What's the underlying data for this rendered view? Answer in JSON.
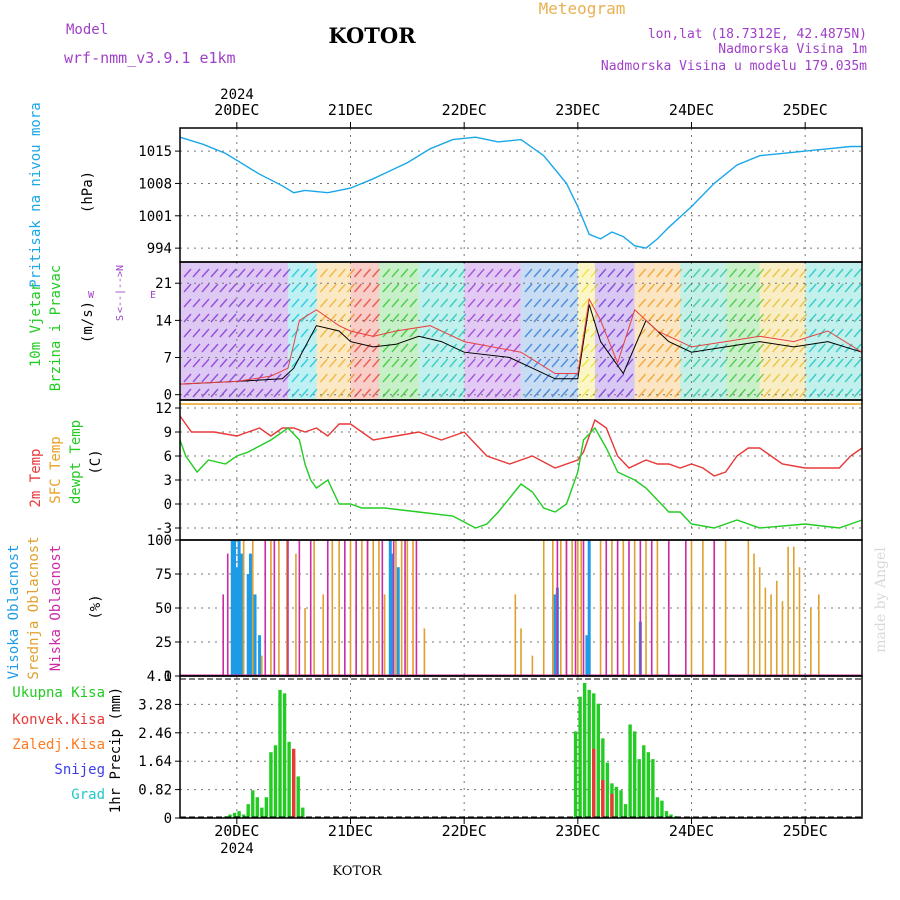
{
  "header": {
    "model_label": "Model",
    "model_name": "wrf-nmm_v3.9.1 e1km",
    "city": "KOTOR",
    "meteogram": "Meteogram",
    "lonlat": "lon,lat (18.7312E, 42.4875N)",
    "elevation": "Nadmorska Visina 1m",
    "model_elevation": "Nadmorska Visina u modelu 179.035m",
    "year_top": "2024",
    "year_bottom": "2024",
    "footer_city": "KOTOR",
    "watermark": "made by Angel"
  },
  "chart_data": [
    {
      "type": "line",
      "panel": "pressure",
      "ylabel_lines": [
        "Pritisak na nivou mora",
        "(hPa)"
      ],
      "yticks": [
        994,
        1001,
        1008,
        1015
      ],
      "ylim": [
        991,
        1020
      ],
      "x_unit": "days since 2024-12-20 00Z",
      "x_ticks": [
        "20DEC",
        "21DEC",
        "22DEC",
        "23DEC",
        "24DEC",
        "25DEC"
      ],
      "series": [
        {
          "color": "#1aa7e8",
          "x": [
            -0.5,
            -0.3,
            -0.1,
            0.2,
            0.4,
            0.5,
            0.6,
            0.8,
            1.0,
            1.2,
            1.5,
            1.7,
            1.9,
            2.1,
            2.3,
            2.5,
            2.7,
            2.9,
            3.0,
            3.1,
            3.2,
            3.3,
            3.4,
            3.5,
            3.6,
            3.7,
            3.8,
            4.0,
            4.2,
            4.4,
            4.6,
            4.8,
            5.0,
            5.2,
            5.4,
            5.5
          ],
          "y": [
            1018,
            1016.5,
            1014.5,
            1010,
            1007.5,
            1006,
            1006.5,
            1006,
            1007,
            1009,
            1012.5,
            1015.5,
            1017.5,
            1018,
            1017,
            1017.5,
            1014,
            1008,
            1003,
            997,
            996,
            997.5,
            996.5,
            994.5,
            994,
            996,
            998.5,
            1003,
            1008,
            1012,
            1014,
            1014.5,
            1015,
            1015.5,
            1016,
            1016
          ]
        }
      ]
    },
    {
      "type": "line",
      "panel": "wind",
      "ylabel_lines": [
        "10m Vjetar",
        "Brzina i Pravac",
        "(m/s)"
      ],
      "compass_lines": [
        "N",
        "<--|-->",
        "S"
      ],
      "compass_w": "W",
      "compass_e": "E",
      "yticks": [
        0,
        7,
        14,
        21
      ],
      "ylim": [
        -1,
        25
      ],
      "series": [
        {
          "color": "#000000",
          "x": [
            -0.5,
            0.0,
            0.4,
            0.5,
            0.7,
            0.9,
            1.0,
            1.2,
            1.4,
            1.6,
            1.8,
            2.0,
            2.4,
            2.8,
            3.0,
            3.1,
            3.2,
            3.4,
            3.6,
            3.8,
            4.0,
            4.3,
            4.6,
            4.9,
            5.2,
            5.5
          ],
          "y": [
            2,
            2.5,
            3,
            5,
            13,
            12,
            10,
            9,
            9.5,
            11,
            10,
            8,
            7,
            3,
            3,
            17,
            10,
            4,
            14,
            10,
            8,
            9,
            10,
            9,
            10,
            8
          ]
        },
        {
          "color": "#e84040",
          "x": [
            -0.5,
            0.0,
            0.3,
            0.45,
            0.55,
            0.7,
            0.9,
            1.0,
            1.2,
            1.4,
            1.7,
            2.0,
            2.5,
            2.8,
            3.0,
            3.1,
            3.2,
            3.35,
            3.5,
            3.7,
            4.0,
            4.3,
            4.6,
            4.9,
            5.2,
            5.5
          ],
          "y": [
            2,
            2.5,
            3.5,
            5,
            14,
            16,
            13,
            12,
            11,
            12,
            13,
            10,
            8,
            4,
            4,
            18,
            14,
            6,
            16,
            12,
            9,
            10,
            11,
            10,
            12,
            8
          ]
        }
      ]
    },
    {
      "type": "line",
      "panel": "temperature",
      "ylabel_lines": [
        "2m Temp",
        "SFC Temp",
        "dewpt Temp",
        "(C)"
      ],
      "yticks": [
        -3,
        0,
        3,
        6,
        9,
        12
      ],
      "ylim": [
        -4.5,
        13
      ],
      "series": [
        {
          "name": "2m Temp",
          "color": "#e83838",
          "x": [
            -0.5,
            -0.4,
            -0.2,
            0.0,
            0.1,
            0.2,
            0.3,
            0.4,
            0.5,
            0.6,
            0.7,
            0.8,
            0.9,
            1.0,
            1.2,
            1.4,
            1.6,
            1.8,
            2.0,
            2.1,
            2.2,
            2.4,
            2.6,
            2.8,
            3.0,
            3.05,
            3.15,
            3.25,
            3.35,
            3.45,
            3.6,
            3.7,
            3.8,
            3.9,
            4.0,
            4.1,
            4.2,
            4.3,
            4.4,
            4.5,
            4.6,
            4.7,
            4.8,
            5.0,
            5.2,
            5.3,
            5.4,
            5.5
          ],
          "y": [
            11,
            9,
            9,
            8.5,
            9,
            9.5,
            8.5,
            9.5,
            9.5,
            9,
            9.5,
            8.5,
            10,
            10,
            8,
            8.5,
            9,
            8,
            9,
            7.5,
            6,
            5,
            6,
            4.5,
            5.5,
            6.5,
            10.5,
            9.5,
            6,
            4.5,
            5.5,
            5,
            5,
            4.5,
            5,
            4.5,
            3.5,
            4,
            6,
            7,
            7,
            6,
            5,
            4.5,
            4.5,
            4.5,
            6,
            7
          ]
        },
        {
          "name": "SFC Temp",
          "color": "#e8a020",
          "x": [
            -0.5,
            5.5
          ],
          "y": [
            12.5,
            12.5
          ]
        },
        {
          "name": "dewpt Temp",
          "color": "#22cc22",
          "x": [
            -0.5,
            -0.45,
            -0.35,
            -0.25,
            -0.1,
            0.0,
            0.1,
            0.3,
            0.45,
            0.55,
            0.6,
            0.65,
            0.7,
            0.8,
            0.9,
            1.0,
            1.1,
            1.3,
            1.6,
            1.9,
            2.1,
            2.2,
            2.3,
            2.5,
            2.6,
            2.7,
            2.8,
            2.9,
            3.0,
            3.05,
            3.15,
            3.25,
            3.35,
            3.5,
            3.6,
            3.7,
            3.8,
            3.9,
            4.0,
            4.2,
            4.4,
            4.6,
            5.0,
            5.3,
            5.5
          ],
          "y": [
            8,
            6,
            4,
            5.5,
            5,
            6,
            6.5,
            8,
            9.5,
            8,
            5,
            3,
            2,
            3,
            0,
            0,
            -0.5,
            -0.5,
            -1,
            -1.5,
            -3,
            -2.5,
            -1,
            2.5,
            1.5,
            -0.5,
            -1,
            0,
            4,
            8,
            9.5,
            7,
            4,
            3,
            2,
            0.5,
            -1,
            -1,
            -2.5,
            -3,
            -2,
            -3,
            -2.5,
            -3,
            -2
          ]
        }
      ]
    },
    {
      "type": "bar",
      "panel": "cloud",
      "ylabel_lines": [
        "Visoka Oblacnost",
        "Srednja Oblacnost",
        "Niska Oblacnost",
        "(%)"
      ],
      "yticks": [
        0,
        25,
        50,
        75,
        100
      ],
      "ylim": [
        0,
        100
      ],
      "series": [
        {
          "name": "Visoka Oblacnost",
          "color": "#1e9be6",
          "x": [
            -0.04,
            -0.02,
            0.0,
            0.02,
            0.04,
            0.1,
            0.12,
            0.16,
            0.2,
            1.35,
            1.37,
            1.42,
            2.8,
            2.82,
            3.08,
            3.1,
            3.55
          ],
          "y": [
            100,
            100,
            80,
            100,
            90,
            75,
            90,
            60,
            30,
            100,
            90,
            80,
            60,
            65,
            30,
            100,
            40
          ]
        },
        {
          "name": "Srednja Oblacnost",
          "color": "#e0a02e",
          "x": [
            0.06,
            0.14,
            0.22,
            0.3,
            0.37,
            0.44,
            0.52,
            0.6,
            0.68,
            0.76,
            0.84,
            0.9,
            1.0,
            1.05,
            1.1,
            1.15,
            1.2,
            1.25,
            1.3,
            1.4,
            1.45,
            1.5,
            1.55,
            1.65,
            2.45,
            2.5,
            2.6,
            2.7,
            2.78,
            2.85,
            2.9,
            2.95,
            3.0,
            3.03,
            3.2,
            3.3,
            3.4,
            3.5,
            3.6,
            3.7,
            3.8,
            4.0,
            4.1,
            4.2,
            4.3,
            4.5,
            4.55,
            4.6,
            4.65,
            4.7,
            4.75,
            4.8,
            4.85,
            4.9,
            4.95,
            5.05,
            5.12
          ],
          "y": [
            100,
            100,
            15,
            100,
            100,
            100,
            90,
            50,
            100,
            60,
            100,
            100,
            100,
            100,
            100,
            100,
            100,
            100,
            60,
            100,
            100,
            100,
            100,
            35,
            60,
            35,
            15,
            100,
            100,
            100,
            100,
            100,
            100,
            100,
            100,
            100,
            100,
            100,
            100,
            100,
            100,
            100,
            100,
            100,
            100,
            100,
            90,
            80,
            65,
            60,
            70,
            55,
            95,
            95,
            80,
            50,
            60
          ]
        },
        {
          "name": "Niska Oblacnost",
          "color": "#cc2aa8",
          "x": [
            -0.12,
            -0.08,
            0.25,
            0.33,
            0.45,
            0.55,
            0.65,
            0.8,
            0.95,
            1.05,
            1.15,
            1.28,
            1.38,
            1.48,
            1.58,
            2.82,
            2.9,
            2.98,
            3.05,
            3.25,
            3.35,
            3.45,
            3.55,
            3.65,
            3.8,
            3.95,
            4.2
          ],
          "y": [
            60,
            90,
            100,
            100,
            100,
            100,
            100,
            100,
            100,
            100,
            100,
            100,
            100,
            100,
            100,
            100,
            100,
            100,
            100,
            100,
            100,
            100,
            100,
            100,
            100,
            100,
            100
          ]
        }
      ]
    },
    {
      "type": "bar",
      "panel": "precipitation",
      "ylabel_lines": [
        "1hr Precip (mm)"
      ],
      "legend": [
        "Ukupna Kisa",
        "Konvek.Kisa",
        "Zaledj.Kisa",
        "Snijeg",
        "Grad"
      ],
      "legend_colors": [
        "#22cc22",
        "#e83838",
        "#ff7a20",
        "#3c3cf0",
        "#22c8c8"
      ],
      "yticks": [
        0,
        0.82,
        1.64,
        2.46,
        3.28,
        4.1
      ],
      "ylim": [
        0,
        4.1
      ],
      "series": [
        {
          "name": "Ukupna Kisa",
          "color": "#22cc22",
          "x": [
            -0.1,
            -0.06,
            -0.02,
            0.02,
            0.06,
            0.1,
            0.14,
            0.18,
            0.22,
            0.26,
            0.3,
            0.34,
            0.38,
            0.42,
            0.46,
            0.5,
            0.54,
            0.58,
            2.98,
            3.02,
            3.06,
            3.1,
            3.14,
            3.18,
            3.22,
            3.26,
            3.3,
            3.34,
            3.38,
            3.42,
            3.46,
            3.5,
            3.54,
            3.58,
            3.62,
            3.66,
            3.7,
            3.74,
            3.78,
            3.82,
            3.86
          ],
          "y": [
            0.05,
            0.1,
            0.15,
            0.2,
            0.1,
            0.4,
            0.8,
            0.6,
            0.3,
            0.6,
            1.9,
            2.1,
            3.7,
            3.6,
            2.2,
            1.8,
            1.2,
            0.3,
            2.5,
            3.5,
            3.9,
            3.7,
            3.6,
            3.3,
            2.3,
            1.6,
            1.0,
            0.9,
            0.8,
            0.4,
            2.7,
            2.5,
            1.7,
            2.1,
            1.9,
            1.7,
            0.6,
            0.5,
            0.2,
            0.1,
            0.05
          ]
        },
        {
          "name": "Konvek.Kisa",
          "color": "#e83838",
          "x": [
            0.5,
            3.14,
            3.22,
            3.3
          ],
          "y": [
            2.0,
            2.0,
            1.1,
            0.7
          ]
        }
      ]
    }
  ]
}
